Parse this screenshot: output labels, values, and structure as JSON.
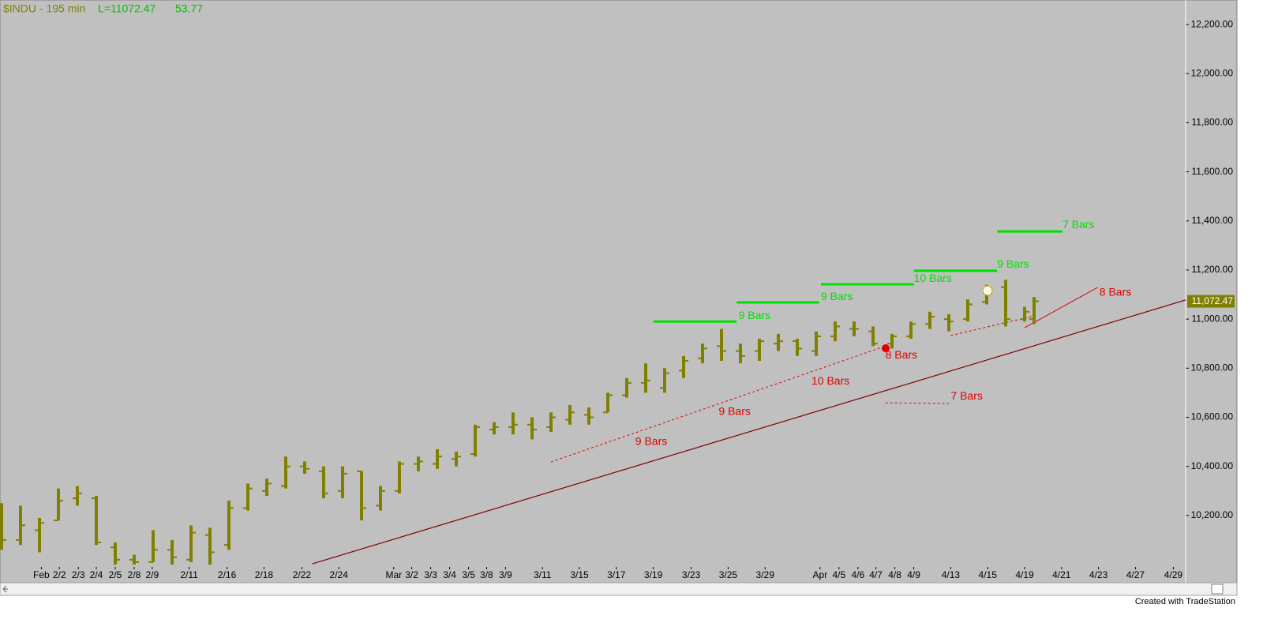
{
  "chart_data": {
    "type": "ohlc",
    "symbol": "$INDU - 195 min",
    "last_label": "L=11072.47",
    "change": "53.77",
    "footer": "Created with TradeStation",
    "color": "#808000",
    "last_price": {
      "value": 11072.47,
      "label": "11,072.47"
    },
    "xlim": [
      0,
      125
    ],
    "ylim": [
      10000,
      12300
    ],
    "yticks": [
      {
        "value": 10200,
        "label": "10,200.00"
      },
      {
        "value": 10400,
        "label": "10,400.00"
      },
      {
        "value": 10600,
        "label": "10,600.00"
      },
      {
        "value": 10800,
        "label": "10,800.00"
      },
      {
        "value": 11000,
        "label": "11,000.00"
      },
      {
        "value": 11200,
        "label": "11,200.00"
      },
      {
        "value": 11400,
        "label": "11,400.00"
      },
      {
        "value": 11600,
        "label": "11,600.00"
      },
      {
        "value": 11800,
        "label": "11,800.00"
      },
      {
        "value": 12000,
        "label": "12,000.00"
      },
      {
        "value": 12200,
        "label": "12,200.00"
      }
    ],
    "xticks": [
      {
        "value": 4.2,
        "label": "Feb"
      },
      {
        "value": 6.1,
        "label": "2/2"
      },
      {
        "value": 8.1,
        "label": "2/3"
      },
      {
        "value": 10,
        "label": "2/4"
      },
      {
        "value": 12,
        "label": "2/5"
      },
      {
        "value": 14,
        "label": "2/8"
      },
      {
        "value": 15.9,
        "label": "2/9"
      },
      {
        "value": 19.8,
        "label": "2/11"
      },
      {
        "value": 23.8,
        "label": "2/16"
      },
      {
        "value": 27.7,
        "label": "2/18"
      },
      {
        "value": 31.7,
        "label": "2/22"
      },
      {
        "value": 35.6,
        "label": "2/24"
      },
      {
        "value": 41.4,
        "label": "Mar"
      },
      {
        "value": 43.3,
        "label": "3/2"
      },
      {
        "value": 45.3,
        "label": "3/3"
      },
      {
        "value": 47.3,
        "label": "3/4"
      },
      {
        "value": 49.3,
        "label": "3/5"
      },
      {
        "value": 51.2,
        "label": "3/8"
      },
      {
        "value": 53.2,
        "label": "3/9"
      },
      {
        "value": 57.1,
        "label": "3/11"
      },
      {
        "value": 61,
        "label": "3/15"
      },
      {
        "value": 64.9,
        "label": "3/17"
      },
      {
        "value": 68.8,
        "label": "3/19"
      },
      {
        "value": 72.8,
        "label": "3/23"
      },
      {
        "value": 76.7,
        "label": "3/25"
      },
      {
        "value": 80.6,
        "label": "3/29"
      },
      {
        "value": 86.4,
        "label": "Apr"
      },
      {
        "value": 88.4,
        "label": "4/5"
      },
      {
        "value": 90.4,
        "label": "4/6"
      },
      {
        "value": 92.3,
        "label": "4/7"
      },
      {
        "value": 94.3,
        "label": "4/8"
      },
      {
        "value": 96.3,
        "label": "4/9"
      },
      {
        "value": 100.2,
        "label": "4/13"
      },
      {
        "value": 104.1,
        "label": "4/15"
      },
      {
        "value": 108,
        "label": "4/19"
      },
      {
        "value": 111.9,
        "label": "4/21"
      },
      {
        "value": 115.8,
        "label": "4/23"
      },
      {
        "value": 119.7,
        "label": "4/27"
      },
      {
        "value": 123.7,
        "label": "4/29"
      }
    ],
    "x": [
      0,
      2,
      4,
      6,
      8,
      10,
      12,
      14,
      16,
      18,
      20,
      22,
      24,
      26,
      28,
      30,
      32,
      34,
      36,
      38,
      40,
      42,
      44,
      46,
      48,
      50,
      52,
      54,
      56,
      58,
      60,
      62,
      64,
      66,
      68,
      70,
      72,
      74,
      76,
      78,
      80,
      82,
      84,
      86,
      88,
      90,
      92,
      94,
      96,
      98,
      100,
      102,
      104,
      106,
      108,
      109
    ],
    "open": [
      10150,
      10100,
      10140,
      10180,
      10270,
      10270,
      10070,
      10020,
      10010,
      10060,
      10020,
      10120,
      10080,
      10230,
      10300,
      10320,
      10400,
      10380,
      10300,
      10380,
      10240,
      10300,
      10410,
      10410,
      10430,
      10450,
      10550,
      10560,
      10570,
      10560,
      10590,
      10610,
      10620,
      10690,
      10740,
      10720,
      10790,
      10840,
      10890,
      10870,
      10870,
      10900,
      10910,
      10870,
      10930,
      10960,
      10950,
      10900,
      10930,
      10980,
      11000,
      11000,
      11070,
      11130,
      11000,
      11000
    ],
    "high": [
      10250,
      10240,
      10190,
      10310,
      10320,
      10280,
      10090,
      10040,
      10140,
      10100,
      10160,
      10150,
      10260,
      10330,
      10350,
      10440,
      10420,
      10400,
      10400,
      10380,
      10320,
      10420,
      10440,
      10470,
      10460,
      10570,
      10580,
      10620,
      10600,
      10620,
      10650,
      10640,
      10700,
      10760,
      10820,
      10800,
      10850,
      10900,
      10960,
      10900,
      10920,
      10940,
      10920,
      10950,
      10990,
      10990,
      10970,
      10940,
      10990,
      11030,
      11020,
      11080,
      11140,
      11160,
      11050,
      11090
    ],
    "low": [
      10060,
      10080,
      10050,
      10180,
      10240,
      10080,
      10000,
      10000,
      10010,
      10000,
      10010,
      10000,
      10060,
      10220,
      10280,
      10310,
      10370,
      10270,
      10270,
      10180,
      10220,
      10290,
      10380,
      10390,
      10400,
      10440,
      10530,
      10530,
      10510,
      10540,
      10570,
      10570,
      10620,
      10680,
      10700,
      10700,
      10760,
      10820,
      10830,
      10820,
      10830,
      10870,
      10850,
      10850,
      10910,
      10930,
      10890,
      10880,
      10920,
      10960,
      10950,
      10990,
      11060,
      10970,
      10990,
      10980
    ],
    "close": [
      10100,
      10160,
      10170,
      10260,
      10290,
      10090,
      10020,
      10010,
      10060,
      10030,
      10130,
      10050,
      10230,
      10310,
      10330,
      10400,
      10390,
      10290,
      10370,
      10230,
      10300,
      10410,
      10420,
      10440,
      10440,
      10560,
      10560,
      10570,
      10550,
      10600,
      10620,
      10600,
      10690,
      10740,
      10750,
      10780,
      10830,
      10880,
      10870,
      10850,
      10910,
      10910,
      10880,
      10930,
      10970,
      10960,
      10900,
      10930,
      10980,
      11010,
      10990,
      11060,
      11120,
      11000,
      11030,
      11072.47
    ],
    "lines": [
      {
        "x1": 68.8,
        "x2": 77.6,
        "y1": 10990,
        "y2": 10990,
        "color": "#00e000",
        "dash": false,
        "width": 3
      },
      {
        "x1": 77.6,
        "x2": 86.3,
        "y1": 11068,
        "y2": 11068,
        "color": "#00e000",
        "dash": false,
        "width": 3
      },
      {
        "x1": 86.5,
        "x2": 96.3,
        "y1": 11142,
        "y2": 11142,
        "color": "#00e000",
        "dash": false,
        "width": 3
      },
      {
        "x1": 96.3,
        "x2": 105.1,
        "y1": 11197,
        "y2": 11197,
        "color": "#00e000",
        "dash": false,
        "width": 3
      },
      {
        "x1": 105.1,
        "x2": 112,
        "y1": 11357,
        "y2": 11357,
        "color": "#00e000",
        "dash": false,
        "width": 3
      },
      {
        "x1": 58,
        "x2": 93.6,
        "y1": 10418,
        "y2": 10894,
        "color": "#e00000",
        "dash": true,
        "width": 1
      },
      {
        "x1": 100.2,
        "x2": 109,
        "y1": 10933,
        "y2": 11013,
        "color": "#e00000",
        "dash": true,
        "width": 1
      },
      {
        "x1": 93.3,
        "x2": 100,
        "y1": 10659,
        "y2": 10656,
        "color": "#e00000",
        "dash": true,
        "width": 1
      },
      {
        "x1": 108,
        "x2": 115.7,
        "y1": 10965,
        "y2": 11129,
        "color": "#e00000",
        "dash": false,
        "width": 1
      },
      {
        "x1": 32.8,
        "x2": 125,
        "y1": 10003,
        "y2": 11078,
        "color": "#800000",
        "dash": false,
        "width": 1.2
      }
    ],
    "annotations": [
      {
        "text": "9 Bars",
        "x": 77.8,
        "y": 11013,
        "color": "#00e000"
      },
      {
        "text": "9 Bars",
        "x": 86.5,
        "y": 11090,
        "color": "#00e000"
      },
      {
        "text": "10 Bars",
        "x": 96.3,
        "y": 11164,
        "color": "#00e000"
      },
      {
        "text": "9 Bars",
        "x": 105.1,
        "y": 11222,
        "color": "#00e000"
      },
      {
        "text": "7 Bars",
        "x": 112,
        "y": 11383,
        "color": "#00e000"
      },
      {
        "text": "9 Bars",
        "x": 66.9,
        "y": 10500,
        "color": "#e00000"
      },
      {
        "text": "9 Bars",
        "x": 75.7,
        "y": 10621,
        "color": "#e00000"
      },
      {
        "text": "10 Bars",
        "x": 85.5,
        "y": 10746,
        "color": "#e00000"
      },
      {
        "text": "8 Bars",
        "x": 93.3,
        "y": 10852,
        "color": "#e00000"
      },
      {
        "text": "7 Bars",
        "x": 100.2,
        "y": 10685,
        "color": "#e00000"
      },
      {
        "text": "8 Bars",
        "x": 115.9,
        "y": 11107,
        "color": "#e00000"
      }
    ]
  }
}
